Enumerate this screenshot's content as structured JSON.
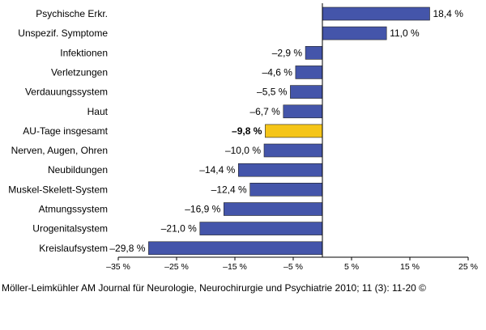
{
  "chart_data": {
    "type": "bar",
    "orientation": "horizontal",
    "categories": [
      "Psychische Erkr.",
      "Unspezif. Symptome",
      "Infektionen",
      "Verletzungen",
      "Verdauungssystem",
      "Haut",
      "AU-Tage insgesamt",
      "Nerven, Augen, Ohren",
      "Neubildungen",
      "Muskel-Skelett-System",
      "Atmungssystem",
      "Urogenitalsystem",
      "Kreislaufsystem"
    ],
    "values": [
      18.4,
      11.0,
      -2.9,
      -4.6,
      -5.5,
      -6.7,
      -9.8,
      -10.0,
      -14.4,
      -12.4,
      -16.9,
      -21.0,
      -29.8
    ],
    "value_labels": [
      "18,4 %",
      "11,0 %",
      "–2,9 %",
      "–4,6 %",
      "–5,5 %",
      "–6,7 %",
      "–9,8 %",
      "–10,0 %",
      "–14,4 %",
      "–12,4 %",
      "–16,9 %",
      "–21,0 %",
      "–29,8 %"
    ],
    "highlight_category": "AU-Tage insgesamt",
    "xlim": [
      -35,
      25
    ],
    "x_ticks": [
      -35,
      -25,
      -15,
      -5,
      5,
      15,
      25
    ],
    "x_tick_labels": [
      "–35 %",
      "–25 %",
      "–15 %",
      "–5 %",
      "5 %",
      "15 %",
      "25 %"
    ],
    "bar_color": "#4455AA",
    "highlight_color": "#F5C518",
    "grid": false,
    "legend": "none"
  },
  "source": "Möller-Leimkühler AM Journal für Neurologie, Neurochirurgie und Psychiatrie 2010; 11 (3): 11-20 ©"
}
